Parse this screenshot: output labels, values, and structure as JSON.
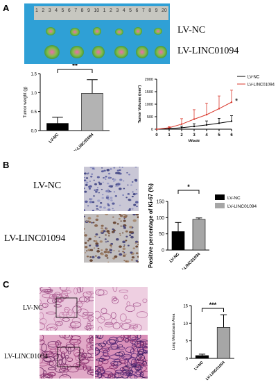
{
  "figure": {
    "panels": {
      "A": "A",
      "B": "B",
      "C": "C"
    },
    "panel_a": {
      "ruler_numbers": [
        "1",
        "2",
        "3",
        "4",
        "5",
        "6",
        "7",
        "8",
        "9",
        "10",
        "1",
        "2",
        "3",
        "4",
        "5",
        "6",
        "7",
        "8",
        "9",
        "20"
      ],
      "row_labels": [
        "LV-NC",
        "LV-LINC01094"
      ],
      "weight_chart": {
        "significance": "**"
      },
      "volume_chart": {
        "significance": "*"
      }
    },
    "panel_b": {
      "row_labels": [
        "LV-NC",
        "LV-LINC01094"
      ],
      "ki67_chart": {
        "significance": "*"
      }
    },
    "panel_c": {
      "row_labels": [
        "LV-NC",
        "LV-LINC01094"
      ],
      "lung_chart": {
        "significance": "***"
      }
    }
  },
  "chart_data": [
    {
      "type": "bar",
      "ylabel": "Tumor weight (g)",
      "categories": [
        "LV-NC",
        "LV-LINC01094"
      ],
      "values": [
        0.19,
        0.98
      ],
      "errors": [
        0.16,
        0.36
      ],
      "ylim": [
        0,
        1.5
      ],
      "yticks": [
        "0.0",
        "0.5",
        "1.0",
        "1.5"
      ],
      "colors": [
        "#000000",
        "#b3b3b3"
      ],
      "significance": "**"
    },
    {
      "type": "line",
      "xlabel": "Week",
      "ylabel": "Tumor Volume (mm³)",
      "x": [
        0,
        1,
        2,
        3,
        4,
        5,
        6
      ],
      "xticks": [
        "0",
        "1",
        "2",
        "3",
        "4",
        "5",
        "6"
      ],
      "yticks": [
        "0",
        "500",
        "1000",
        "1500",
        "2000"
      ],
      "ylim": [
        0,
        2000
      ],
      "legend_position": "top-right",
      "series": [
        {
          "name": "LV-NC",
          "color": "#000000",
          "values": [
            0,
            20,
            60,
            110,
            170,
            240,
            320
          ],
          "errors": [
            0,
            15,
            60,
            110,
            160,
            190,
            220
          ]
        },
        {
          "name": "LV-LINC01094",
          "color": "#d9372b",
          "values": [
            0,
            60,
            200,
            400,
            580,
            820,
            1080
          ],
          "errors": [
            0,
            40,
            220,
            380,
            460,
            510,
            480
          ]
        }
      ],
      "significance": "*"
    },
    {
      "type": "bar",
      "ylabel": "Positive percentage of Ki-67 (%)",
      "categories": [
        "LV-NC",
        "LV-LINC01094"
      ],
      "values": [
        57,
        95
      ],
      "errors": [
        28,
        4
      ],
      "ylim": [
        0,
        150
      ],
      "yticks": [
        "0",
        "50",
        "100",
        "150"
      ],
      "colors": [
        "#000000",
        "#a6a6a6"
      ],
      "legend": [
        "LV-NC",
        "LV-LINC01094"
      ],
      "legend_position": "right",
      "significance": "*"
    },
    {
      "type": "bar",
      "ylabel": "Lung Metastasis Area",
      "categories": [
        "LV-NC",
        "LV-LINC01094"
      ],
      "values": [
        0.8,
        8.8
      ],
      "errors": [
        0.4,
        3.6
      ],
      "ylim": [
        0,
        15
      ],
      "yticks": [
        "0",
        "5",
        "10",
        "15"
      ],
      "colors": [
        "#000000",
        "#a6a6a6"
      ],
      "significance": "***"
    }
  ]
}
